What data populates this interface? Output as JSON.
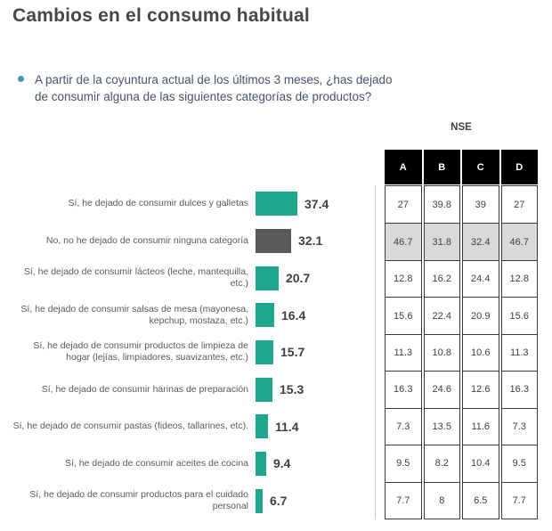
{
  "header": {
    "title": "Cambios en el consumo habitual",
    "question": "A partir de la coyuntura actual de los últimos 3 meses, ¿has dejado de consumir alguna de las siguientes categorías de productos?"
  },
  "chart_data": {
    "type": "bar",
    "orientation": "horizontal",
    "unit": "%",
    "categories": [
      "Sí, he dejado de consumir dulces y galletas",
      "No, no he dejado de consumir ninguna categoría",
      "Sí, he dejado de consumir lácteos (leche, mantequilla, etc.)",
      "Sí, he dejado de consumir  salsas de mesa (mayonesa, kepchup, mostaza, etc.)",
      "Sí, he dejado de consumir productos de limpieza de hogar (lejías, limpiadores, suavizantes, etc.)",
      "Sí, he dejado de consumir  harinas de preparación",
      "Sí, he dejado de consumir  pastas (fideos, tallarines, etc).",
      "Sí, he dejado de consumir  aceites de cocina",
      "Sí, he dejado de consumir productos para el cuidado personal"
    ],
    "values": [
      37.4,
      32.1,
      20.7,
      16.4,
      15.7,
      15.3,
      11.4,
      9.4,
      6.7
    ],
    "bar_colors": [
      "#1EA78D",
      "#595959",
      "#1EA78D",
      "#1EA78D",
      "#1EA78D",
      "#1EA78D",
      "#1EA78D",
      "#1EA78D",
      "#1EA78D"
    ],
    "accent_color": "#1EA78D",
    "no_category_color": "#595959"
  },
  "nse_table": {
    "label": "NSE",
    "columns": [
      "A",
      "B",
      "C",
      "D"
    ],
    "rows": [
      [
        27,
        39.8,
        39,
        27
      ],
      [
        46.7,
        31.8,
        32.4,
        46.7
      ],
      [
        12.8,
        16.2,
        24.4,
        12.8
      ],
      [
        15.6,
        22.4,
        20.9,
        15.6
      ],
      [
        11.3,
        10.8,
        10.6,
        11.3
      ],
      [
        16.3,
        24.6,
        12.6,
        16.3
      ],
      [
        7.3,
        13.5,
        11.6,
        7.3
      ],
      [
        9.5,
        8.2,
        10.4,
        9.5
      ],
      [
        7.7,
        8,
        6.5,
        7.7
      ]
    ],
    "highlighted_row_index": 1,
    "highlight_color": "#D9D9D9"
  }
}
